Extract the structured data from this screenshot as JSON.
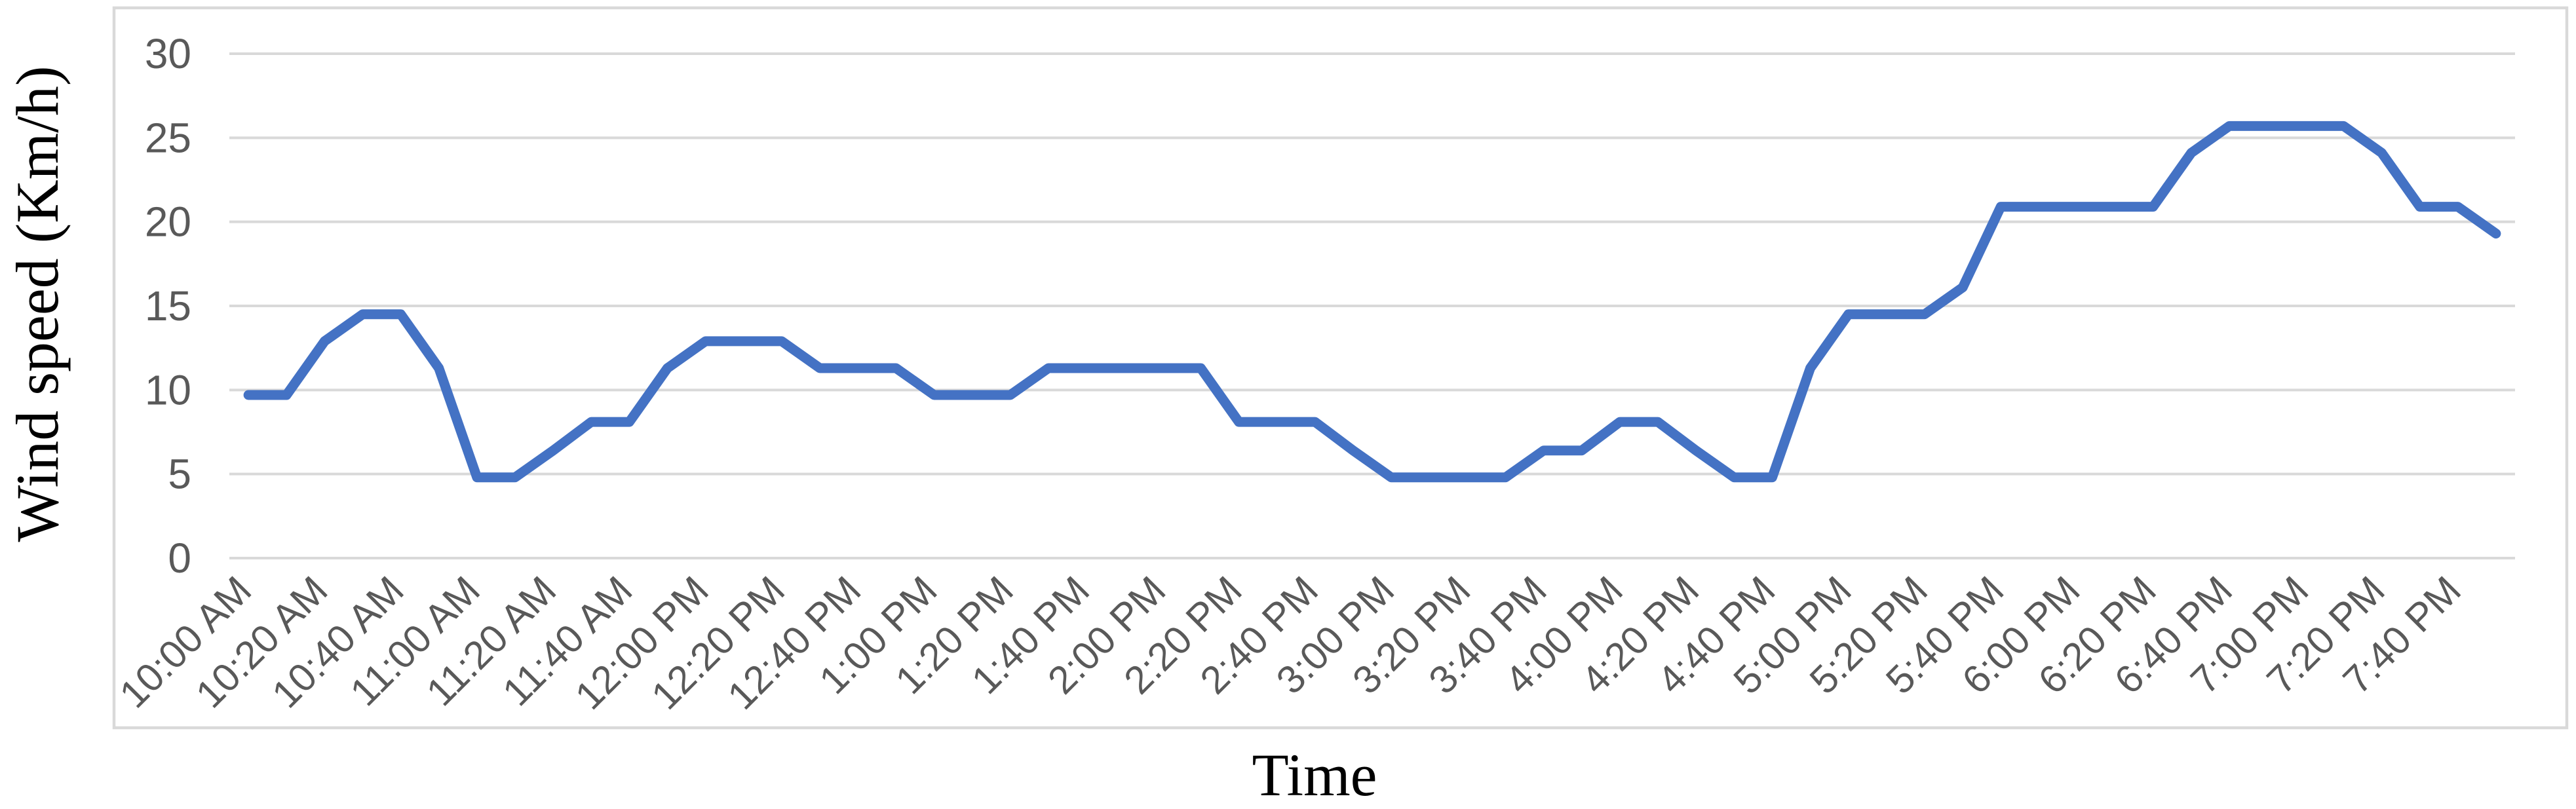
{
  "chart_data": {
    "type": "line",
    "title": "",
    "xlabel": "Time",
    "ylabel": "Wind speed (Km/h)",
    "ylim": [
      0,
      30
    ],
    "yticks": [
      0,
      5,
      10,
      15,
      20,
      25,
      30
    ],
    "grid": "horizontal gridlines only",
    "legend": "none",
    "x_label_interval": 2,
    "x_tick_rotation_deg": 45,
    "x": [
      "10:00 AM",
      "10:10 AM",
      "10:20 AM",
      "10:30 AM",
      "10:40 AM",
      "10:50 AM",
      "11:00 AM",
      "11:10 AM",
      "11:20 AM",
      "11:30 AM",
      "11:40 AM",
      "11:50 AM",
      "12:00 PM",
      "12:10 PM",
      "12:20 PM",
      "12:30 PM",
      "12:40 PM",
      "12:50 PM",
      "1:00 PM",
      "1:10 PM",
      "1:20 PM",
      "1:30 PM",
      "1:40 PM",
      "1:50 PM",
      "2:00 PM",
      "2:10 PM",
      "2:20 PM",
      "2:30 PM",
      "2:40 PM",
      "2:50 PM",
      "3:00 PM",
      "3:10 PM",
      "3:20 PM",
      "3:30 PM",
      "3:40 PM",
      "3:50 PM",
      "4:00 PM",
      "4:10 PM",
      "4:20 PM",
      "4:30 PM",
      "4:40 PM",
      "4:50 PM",
      "5:00 PM",
      "5:10 PM",
      "5:20 PM",
      "5:30 PM",
      "5:40 PM",
      "5:50 PM",
      "6:00 PM",
      "6:10 PM",
      "6:20 PM",
      "6:30 PM",
      "6:40 PM",
      "6:50 PM",
      "7:00 PM",
      "7:10 PM",
      "7:20 PM",
      "7:30 PM",
      "7:40 PM",
      "7:50 PM"
    ],
    "x_labels_shown": [
      "10:00 AM",
      "10:20 AM",
      "10:40 AM",
      "11:00 AM",
      "11:20 AM",
      "11:40 AM",
      "12:00 PM",
      "12:20 PM",
      "12:40 PM",
      "1:00 PM",
      "1:20 PM",
      "1:40 PM",
      "2:00 PM",
      "2:20 PM",
      "2:40 PM",
      "3:00 PM",
      "3:20 PM",
      "3:40 PM",
      "4:00 PM",
      "4:20 PM",
      "4:40 PM",
      "5:00 PM",
      "5:20 PM",
      "5:40 PM",
      "6:00 PM",
      "6:20 PM",
      "6:40 PM",
      "7:00 PM",
      "7:20 PM",
      "7:40 PM"
    ],
    "series": [
      {
        "name": "Wind speed (Km/h)",
        "values": [
          9.7,
          9.7,
          12.9,
          14.5,
          14.5,
          11.3,
          4.8,
          4.8,
          6.4,
          8.1,
          8.1,
          11.3,
          12.9,
          12.9,
          12.9,
          11.3,
          11.3,
          11.3,
          9.7,
          9.7,
          9.7,
          11.3,
          11.3,
          11.3,
          11.3,
          11.3,
          8.1,
          8.1,
          8.1,
          6.4,
          4.8,
          4.8,
          4.8,
          4.8,
          6.4,
          6.4,
          8.1,
          8.1,
          6.4,
          4.8,
          4.8,
          11.3,
          14.5,
          14.5,
          14.5,
          16.1,
          20.9,
          20.9,
          20.9,
          20.9,
          20.9,
          24.1,
          25.7,
          25.7,
          25.7,
          25.7,
          24.1,
          20.9,
          20.9,
          19.3
        ]
      }
    ],
    "colors": {
      "line": "#4472C4",
      "gridline": "#D9D9D9",
      "chart_border": "#D9D9D9",
      "tick_label": "#595959",
      "axis_title": "#000000"
    }
  }
}
